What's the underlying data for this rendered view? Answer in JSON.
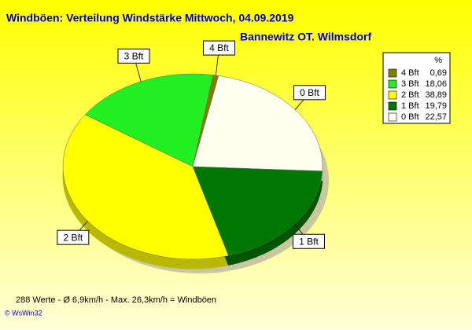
{
  "chart_data": {
    "type": "pie",
    "title": "Windböen: Verteilung Windstärke  Mittwoch, 04.09.2019",
    "subtitle": "Bannewitz OT. Wilmsdorf",
    "legend_title": "%",
    "categories": [
      "4 Bft",
      "3 Bft",
      "2 Bft",
      "1 Bft",
      "0 Bft"
    ],
    "values": [
      0.69,
      18.06,
      38.89,
      19.79,
      22.57
    ],
    "value_labels": [
      "0,69",
      "18,06",
      "38,89",
      "19,79",
      "22,57"
    ],
    "colors": [
      "#808000",
      "#22ee22",
      "#ffff00",
      "#007800",
      "#fffff0"
    ],
    "footer": "288 Werte   -   Ø 6,9km/h  -  Max. 26,3km/h = Windböen",
    "credit": "© WsWin32"
  }
}
